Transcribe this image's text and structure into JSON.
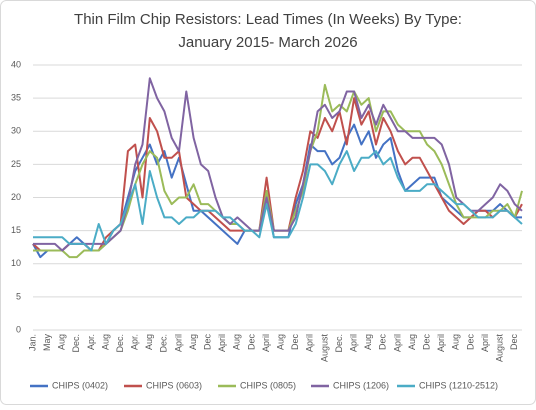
{
  "chart_data": {
    "type": "line",
    "title": "Thin Film Chip Resistors: Lead Times (In Weeks) By Type:",
    "subtitle": "January 2015- March 2026",
    "categories": [
      "Jan.",
      null,
      "May",
      null,
      "Aug",
      null,
      "Dec.",
      null,
      "Apr.",
      null,
      "Aug",
      null,
      "Dec.",
      null,
      "Apr.",
      null,
      "Aug",
      null,
      "Dec.",
      null,
      "April",
      null,
      "Aug",
      null,
      "Dec",
      null,
      "April",
      null,
      "Aug",
      null,
      "Dec",
      null,
      "April",
      null,
      "Aug",
      null,
      "Dec",
      null,
      "April",
      null,
      "August",
      null,
      "Dec.",
      null,
      "April",
      null,
      "Aug",
      null,
      "Dec",
      null,
      "April",
      null,
      "Aug",
      null,
      "Dec",
      null,
      "April",
      null,
      "Aug",
      null,
      "Dec",
      null,
      "April",
      null,
      "August",
      null,
      "Dec",
      null
    ],
    "series": [
      {
        "name": "CHIPS (0402)",
        "color": "#4472c4",
        "values": [
          13,
          11,
          12,
          12,
          12,
          13,
          14,
          13,
          12,
          12,
          13,
          15,
          16,
          20,
          24,
          26,
          28,
          25,
          27,
          23,
          26,
          22,
          18,
          18,
          17,
          16,
          15,
          14,
          13,
          15,
          15,
          15,
          20,
          14,
          14,
          14,
          19,
          22,
          28,
          27,
          27,
          25,
          26,
          29,
          31,
          28,
          30,
          26,
          28,
          29,
          24,
          21,
          22,
          23,
          23,
          23,
          20,
          19,
          18,
          17,
          17,
          18,
          18,
          18,
          19,
          18,
          17,
          17
        ]
      },
      {
        "name": "CHIPS (0603)",
        "color": "#c0504d",
        "values": [
          13,
          12,
          12,
          12,
          12,
          13,
          13,
          13,
          12,
          12,
          14,
          15,
          16,
          27,
          28,
          20,
          32,
          30,
          26,
          26,
          27,
          20,
          19,
          18,
          18,
          17,
          16,
          15,
          15,
          15,
          15,
          15,
          23,
          15,
          15,
          15,
          20,
          24,
          30,
          29,
          32,
          30,
          33,
          28,
          35,
          31,
          33,
          28,
          32,
          30,
          27,
          25,
          26,
          26,
          24,
          22,
          20,
          18,
          17,
          16,
          17,
          18,
          18,
          17,
          18,
          18,
          17,
          19
        ]
      },
      {
        "name": "CHIPS (0805)",
        "color": "#9bbb59",
        "values": [
          12,
          12,
          12,
          12,
          12,
          11,
          11,
          12,
          12,
          12,
          13,
          14,
          15,
          18,
          22,
          25,
          27,
          26,
          21,
          19,
          20,
          20,
          22,
          19,
          19,
          18,
          17,
          16,
          16,
          15,
          15,
          15,
          21,
          15,
          15,
          15,
          18,
          21,
          27,
          30,
          37,
          33,
          34,
          33,
          36,
          34,
          35,
          30,
          33,
          33,
          31,
          30,
          30,
          30,
          28,
          27,
          25,
          22,
          19,
          17,
          17,
          17,
          17,
          18,
          18,
          19,
          17,
          21
        ]
      },
      {
        "name": "CHIPS (1206)",
        "color": "#8064a2",
        "values": [
          13,
          13,
          13,
          13,
          12,
          13,
          13,
          13,
          13,
          13,
          13,
          14,
          15,
          19,
          25,
          28,
          38,
          35,
          33,
          29,
          27,
          36,
          29,
          25,
          24,
          20,
          17,
          16,
          17,
          16,
          15,
          15,
          20,
          15,
          15,
          15,
          17,
          22,
          27,
          33,
          34,
          32,
          33,
          36,
          36,
          32,
          34,
          31,
          34,
          32,
          30,
          30,
          29,
          29,
          29,
          29,
          28,
          25,
          20,
          19,
          18,
          18,
          19,
          20,
          22,
          21,
          19,
          18
        ]
      },
      {
        "name": "CHIPS (1210-2512)",
        "color": "#4bacc6",
        "values": [
          14,
          14,
          14,
          14,
          14,
          13,
          13,
          13,
          12,
          16,
          13,
          15,
          16,
          19,
          22,
          16,
          24,
          20,
          17,
          17,
          16,
          17,
          17,
          18,
          18,
          18,
          17,
          17,
          16,
          15,
          15,
          14,
          19,
          14,
          14,
          14,
          16,
          20,
          25,
          25,
          24,
          22,
          25,
          27,
          24,
          26,
          26,
          27,
          25,
          26,
          23,
          21,
          21,
          21,
          22,
          22,
          21,
          20,
          19,
          19,
          18,
          17,
          17,
          17,
          18,
          18,
          17,
          16
        ]
      }
    ],
    "ylim": [
      0,
      40
    ],
    "yticks": [
      0,
      5,
      10,
      15,
      20,
      25,
      30,
      35,
      40
    ],
    "grid": true,
    "legend": "bottom"
  }
}
